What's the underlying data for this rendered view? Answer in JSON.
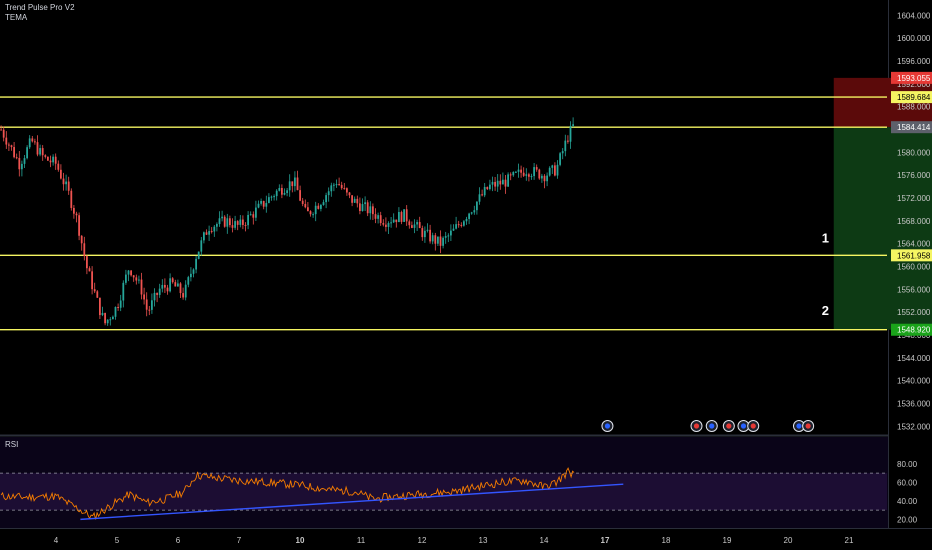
{
  "legend": {
    "indicator_1": "Trend Pulse Pro V2",
    "indicator_2": "TEMA",
    "rsi": "RSI"
  },
  "colors": {
    "background": "#000000",
    "level_line": "#f5f562",
    "candle_up": "#26a69a",
    "candle_down": "#ef5350",
    "stop_zone": "#5b0a0a",
    "target_zone": "#0d3a14",
    "rsi_line": "#f57c00",
    "trendline": "#3355ff",
    "axis_text": "#c8c8c8"
  },
  "annotations": [
    "1",
    "2"
  ],
  "price_axis": {
    "ticks": [
      "1604.000",
      "1600.000",
      "1596.000",
      "1592.000",
      "1588.000",
      "1584.000",
      "1580.000",
      "1576.000",
      "1572.000",
      "1568.000",
      "1564.000",
      "1560.000",
      "1556.000",
      "1552.000",
      "1548.000",
      "1544.000",
      "1540.000",
      "1536.000",
      "1532.000"
    ],
    "range": [
      1531,
      1606
    ],
    "badges": [
      {
        "label": "1593.055",
        "value": 1593.055,
        "bg": "#e53935",
        "fg": "#ffffff"
      },
      {
        "label": "1589.684",
        "value": 1589.684,
        "bg": "#f5f562",
        "fg": "#000000"
      },
      {
        "label": "1584.414",
        "value": 1584.414,
        "bg": "#5d606b",
        "fg": "#ffffff"
      },
      {
        "label": "1561.958",
        "value": 1561.958,
        "bg": "#f5f562",
        "fg": "#000000"
      },
      {
        "label": "1548.920",
        "value": 1548.92,
        "bg": "#1aa31a",
        "fg": "#ffffff"
      }
    ]
  },
  "levels": [
    1589.684,
    1584.414,
    1561.958,
    1548.92
  ],
  "position": {
    "stop": 1593.055,
    "entry": 1584.414,
    "target": 1548.92,
    "start_day": 16.75,
    "end_day": 19.0
  },
  "rsi_axis": {
    "ticks": [
      "80.00",
      "60.00",
      "40.00",
      "20.00"
    ],
    "range": [
      15,
      82
    ],
    "band": [
      70,
      30
    ]
  },
  "time_axis": {
    "ticks": [
      {
        "label": "4",
        "day": 4,
        "bold": false
      },
      {
        "label": "5",
        "day": 5,
        "bold": false
      },
      {
        "label": "6",
        "day": 6,
        "bold": false
      },
      {
        "label": "7",
        "day": 7,
        "bold": false
      },
      {
        "label": "10",
        "day": 8,
        "bold": true
      },
      {
        "label": "11",
        "day": 9,
        "bold": false
      },
      {
        "label": "12",
        "day": 10,
        "bold": false
      },
      {
        "label": "13",
        "day": 11,
        "bold": false
      },
      {
        "label": "14",
        "day": 12,
        "bold": false
      },
      {
        "label": "17",
        "day": 13,
        "bold": true
      },
      {
        "label": "18",
        "day": 14,
        "bold": false
      },
      {
        "label": "19",
        "day": 15,
        "bold": false
      },
      {
        "label": "20",
        "day": 16,
        "bold": false
      },
      {
        "label": "21",
        "day": 17,
        "bold": false
      }
    ]
  },
  "chart_data": {
    "type": "candlestick",
    "x_unit": "trading day index (4 = day labeled 4)",
    "price_path": [
      [
        3.1,
        1584
      ],
      [
        3.4,
        1578
      ],
      [
        3.6,
        1582
      ],
      [
        3.8,
        1579
      ],
      [
        4.0,
        1578
      ],
      [
        4.2,
        1573
      ],
      [
        4.35,
        1568
      ],
      [
        4.5,
        1560
      ],
      [
        4.7,
        1553
      ],
      [
        4.8,
        1550
      ],
      [
        5.0,
        1553
      ],
      [
        5.2,
        1560
      ],
      [
        5.4,
        1556
      ],
      [
        5.5,
        1552
      ],
      [
        5.7,
        1556
      ],
      [
        5.9,
        1557
      ],
      [
        6.1,
        1555
      ],
      [
        6.3,
        1562
      ],
      [
        6.5,
        1567
      ],
      [
        6.8,
        1568
      ],
      [
        7.0,
        1567
      ],
      [
        7.3,
        1570
      ],
      [
        7.6,
        1573
      ],
      [
        7.9,
        1575
      ],
      [
        8.1,
        1569
      ],
      [
        8.3,
        1571
      ],
      [
        8.6,
        1575
      ],
      [
        8.8,
        1572
      ],
      [
        9.1,
        1570
      ],
      [
        9.4,
        1568
      ],
      [
        9.7,
        1569
      ],
      [
        10.0,
        1566
      ],
      [
        10.3,
        1564
      ],
      [
        10.5,
        1566
      ],
      [
        10.8,
        1570
      ],
      [
        11.1,
        1574
      ],
      [
        11.4,
        1575
      ],
      [
        11.7,
        1577
      ],
      [
        12.0,
        1576
      ],
      [
        12.2,
        1577
      ],
      [
        12.4,
        1583
      ],
      [
        12.5,
        1585
      ]
    ],
    "rsi_path": [
      [
        3.1,
        45
      ],
      [
        3.5,
        44
      ],
      [
        4.0,
        45
      ],
      [
        4.4,
        30
      ],
      [
        4.6,
        22
      ],
      [
        4.9,
        35
      ],
      [
        5.2,
        47
      ],
      [
        5.5,
        38
      ],
      [
        5.8,
        42
      ],
      [
        6.1,
        50
      ],
      [
        6.3,
        68
      ],
      [
        6.6,
        65
      ],
      [
        7.0,
        62
      ],
      [
        7.5,
        60
      ],
      [
        8.0,
        57
      ],
      [
        8.5,
        52
      ],
      [
        8.9,
        50
      ],
      [
        9.2,
        42
      ],
      [
        9.6,
        45
      ],
      [
        10.1,
        48
      ],
      [
        10.5,
        50
      ],
      [
        10.9,
        55
      ],
      [
        11.3,
        60
      ],
      [
        11.7,
        62
      ],
      [
        12.0,
        55
      ],
      [
        12.2,
        60
      ],
      [
        12.4,
        72
      ],
      [
        12.5,
        68
      ]
    ],
    "rsi_trendline": {
      "from": [
        4.4,
        20
      ],
      "to": [
        13.3,
        58
      ]
    }
  }
}
